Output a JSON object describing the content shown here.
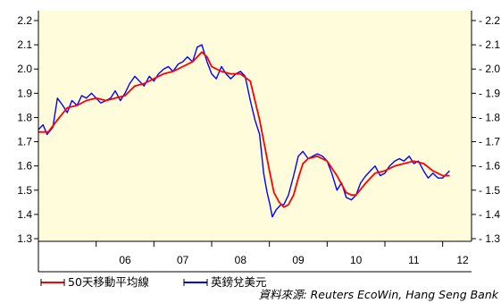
{
  "chart_data": {
    "type": "line",
    "ylim": [
      1.3,
      2.2
    ],
    "yticks": [
      "1.3",
      "1.4",
      "1.5",
      "1.6",
      "1.7",
      "1.8",
      "1.9",
      "2.0",
      "2.1",
      "2.2"
    ],
    "xlim": [
      2005.0,
      2012.5
    ],
    "xticks": [
      {
        "label": "06",
        "x": 2006.0
      },
      {
        "label": "07",
        "x": 2007.0
      },
      {
        "label": "08",
        "x": 2008.0
      },
      {
        "label": "09",
        "x": 2009.0
      },
      {
        "label": "10",
        "x": 2010.0
      },
      {
        "label": "11",
        "x": 2011.0
      },
      {
        "label": "12",
        "x": 2012.0
      }
    ],
    "grid": false,
    "background": "#FFFCDC",
    "series": [
      {
        "name": "英鎊兌美元",
        "color": "#0000FF",
        "points": [
          [
            2005.0,
            1.75
          ],
          [
            2005.08,
            1.77
          ],
          [
            2005.15,
            1.73
          ],
          [
            2005.25,
            1.76
          ],
          [
            2005.33,
            1.88
          ],
          [
            2005.42,
            1.85
          ],
          [
            2005.5,
            1.82
          ],
          [
            2005.58,
            1.87
          ],
          [
            2005.67,
            1.85
          ],
          [
            2005.75,
            1.89
          ],
          [
            2005.83,
            1.88
          ],
          [
            2005.92,
            1.9
          ],
          [
            2006.0,
            1.88
          ],
          [
            2006.08,
            1.86
          ],
          [
            2006.17,
            1.87
          ],
          [
            2006.25,
            1.88
          ],
          [
            2006.33,
            1.91
          ],
          [
            2006.42,
            1.87
          ],
          [
            2006.5,
            1.9
          ],
          [
            2006.58,
            1.94
          ],
          [
            2006.67,
            1.97
          ],
          [
            2006.75,
            1.95
          ],
          [
            2006.83,
            1.93
          ],
          [
            2006.92,
            1.97
          ],
          [
            2007.0,
            1.95
          ],
          [
            2007.08,
            1.98
          ],
          [
            2007.17,
            2.0
          ],
          [
            2007.25,
            2.01
          ],
          [
            2007.33,
            1.99
          ],
          [
            2007.42,
            2.02
          ],
          [
            2007.5,
            2.03
          ],
          [
            2007.58,
            2.05
          ],
          [
            2007.67,
            2.03
          ],
          [
            2007.75,
            2.09
          ],
          [
            2007.83,
            2.1
          ],
          [
            2007.92,
            2.03
          ],
          [
            2008.0,
            1.98
          ],
          [
            2008.08,
            1.96
          ],
          [
            2008.17,
            2.01
          ],
          [
            2008.25,
            1.98
          ],
          [
            2008.33,
            1.96
          ],
          [
            2008.42,
            1.98
          ],
          [
            2008.5,
            1.99
          ],
          [
            2008.58,
            1.97
          ],
          [
            2008.67,
            1.87
          ],
          [
            2008.75,
            1.79
          ],
          [
            2008.83,
            1.73
          ],
          [
            2008.9,
            1.57
          ],
          [
            2008.96,
            1.49
          ],
          [
            2009.0,
            1.45
          ],
          [
            2009.05,
            1.39
          ],
          [
            2009.12,
            1.42
          ],
          [
            2009.2,
            1.44
          ],
          [
            2009.25,
            1.44
          ],
          [
            2009.33,
            1.48
          ],
          [
            2009.42,
            1.56
          ],
          [
            2009.5,
            1.64
          ],
          [
            2009.58,
            1.66
          ],
          [
            2009.67,
            1.63
          ],
          [
            2009.75,
            1.64
          ],
          [
            2009.83,
            1.65
          ],
          [
            2009.92,
            1.64
          ],
          [
            2010.0,
            1.62
          ],
          [
            2010.08,
            1.57
          ],
          [
            2010.17,
            1.5
          ],
          [
            2010.25,
            1.53
          ],
          [
            2010.33,
            1.47
          ],
          [
            2010.42,
            1.46
          ],
          [
            2010.5,
            1.48
          ],
          [
            2010.58,
            1.53
          ],
          [
            2010.67,
            1.56
          ],
          [
            2010.75,
            1.58
          ],
          [
            2010.83,
            1.6
          ],
          [
            2010.92,
            1.56
          ],
          [
            2011.0,
            1.57
          ],
          [
            2011.08,
            1.6
          ],
          [
            2011.17,
            1.62
          ],
          [
            2011.25,
            1.63
          ],
          [
            2011.33,
            1.62
          ],
          [
            2011.42,
            1.64
          ],
          [
            2011.5,
            1.61
          ],
          [
            2011.58,
            1.62
          ],
          [
            2011.67,
            1.58
          ],
          [
            2011.75,
            1.55
          ],
          [
            2011.83,
            1.57
          ],
          [
            2011.92,
            1.55
          ],
          [
            2012.0,
            1.55
          ],
          [
            2012.08,
            1.57
          ],
          [
            2012.12,
            1.58
          ]
        ]
      },
      {
        "name": "50天移動平均線",
        "color": "#FF0000",
        "points": [
          [
            2005.0,
            1.74
          ],
          [
            2005.17,
            1.74
          ],
          [
            2005.33,
            1.79
          ],
          [
            2005.5,
            1.84
          ],
          [
            2005.67,
            1.85
          ],
          [
            2005.83,
            1.87
          ],
          [
            2006.0,
            1.88
          ],
          [
            2006.17,
            1.87
          ],
          [
            2006.33,
            1.88
          ],
          [
            2006.5,
            1.89
          ],
          [
            2006.67,
            1.93
          ],
          [
            2006.83,
            1.94
          ],
          [
            2007.0,
            1.96
          ],
          [
            2007.17,
            1.98
          ],
          [
            2007.33,
            1.99
          ],
          [
            2007.5,
            2.01
          ],
          [
            2007.67,
            2.03
          ],
          [
            2007.83,
            2.07
          ],
          [
            2007.92,
            2.05
          ],
          [
            2008.0,
            2.01
          ],
          [
            2008.17,
            1.99
          ],
          [
            2008.33,
            1.98
          ],
          [
            2008.5,
            1.98
          ],
          [
            2008.67,
            1.95
          ],
          [
            2008.75,
            1.87
          ],
          [
            2008.83,
            1.79
          ],
          [
            2008.92,
            1.68
          ],
          [
            2009.0,
            1.58
          ],
          [
            2009.08,
            1.49
          ],
          [
            2009.17,
            1.45
          ],
          [
            2009.25,
            1.43
          ],
          [
            2009.33,
            1.44
          ],
          [
            2009.42,
            1.48
          ],
          [
            2009.5,
            1.55
          ],
          [
            2009.58,
            1.61
          ],
          [
            2009.67,
            1.63
          ],
          [
            2009.83,
            1.64
          ],
          [
            2010.0,
            1.62
          ],
          [
            2010.17,
            1.56
          ],
          [
            2010.33,
            1.49
          ],
          [
            2010.42,
            1.48
          ],
          [
            2010.5,
            1.48
          ],
          [
            2010.67,
            1.53
          ],
          [
            2010.83,
            1.57
          ],
          [
            2011.0,
            1.58
          ],
          [
            2011.17,
            1.6
          ],
          [
            2011.33,
            1.61
          ],
          [
            2011.5,
            1.62
          ],
          [
            2011.67,
            1.61
          ],
          [
            2011.83,
            1.58
          ],
          [
            2012.0,
            1.56
          ],
          [
            2012.12,
            1.56
          ]
        ]
      }
    ],
    "legend": {
      "placement": "bottom-left"
    },
    "source": "資料來源: Reuters EcoWin, Hang Seng Bank"
  }
}
